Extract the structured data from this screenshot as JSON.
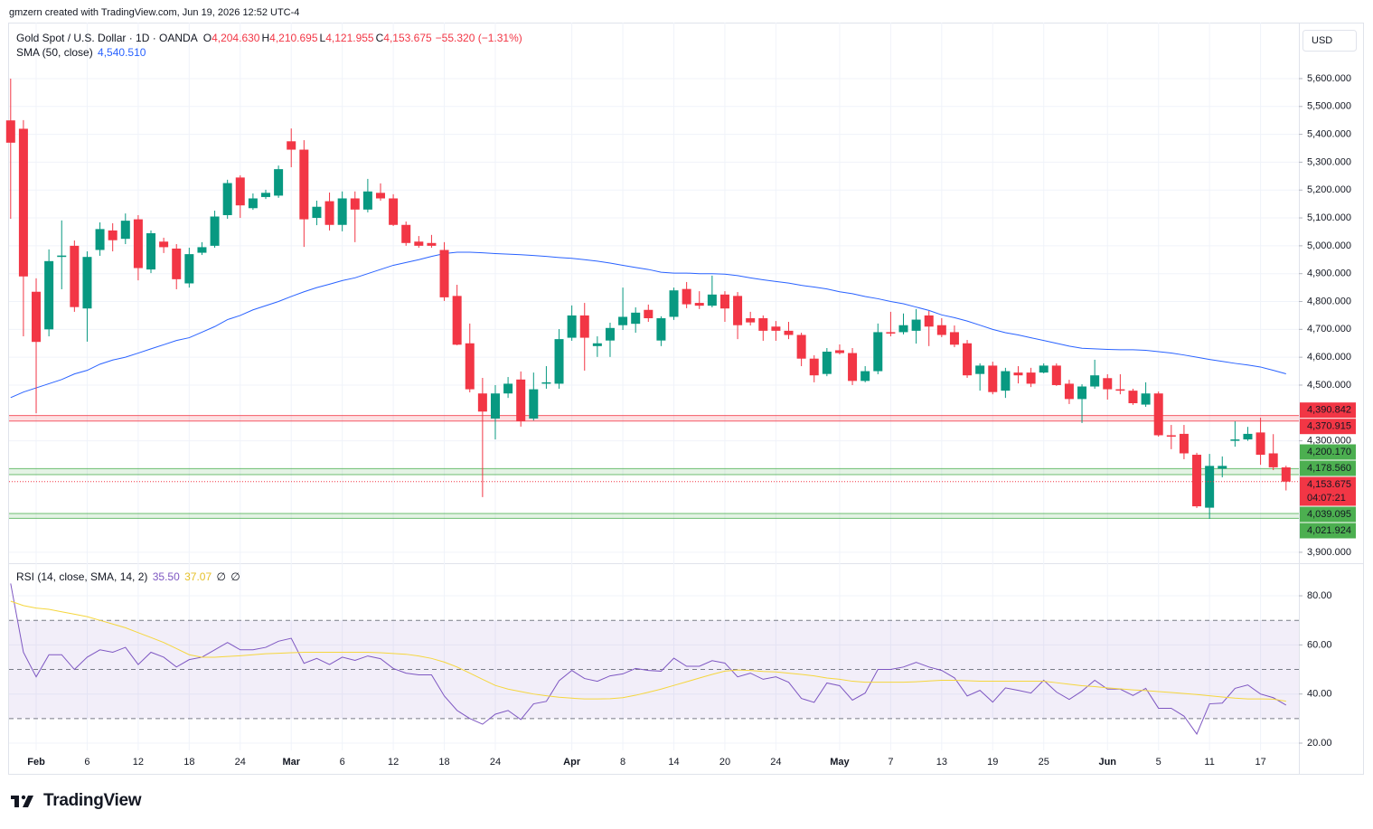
{
  "header": {
    "attribution": "gmzern created with TradingView.com, Jun 19, 2026 12:52 UTC-4",
    "brand": "TradingView"
  },
  "chart_data": [
    {
      "type": "candlestick",
      "title": "Gold Spot / U.S. Dollar · 1D · OANDA",
      "ohlc": [
        {
          "key": "O",
          "text": "4,204.630"
        },
        {
          "key": "H",
          "text": "4,210.695"
        },
        {
          "key": "L",
          "text": "4,121.955"
        },
        {
          "key": "C",
          "text": "4,153.675"
        }
      ],
      "change": "−55.320 (−1.31%)",
      "currency": "USD",
      "up_color": "#089981",
      "down_color": "#f23645",
      "categories": [
        null,
        null,
        "Feb",
        null,
        null,
        null,
        "6",
        null,
        null,
        null,
        "12",
        null,
        null,
        null,
        "18",
        null,
        null,
        null,
        "24",
        null,
        null,
        null,
        "Mar",
        null,
        null,
        null,
        "6",
        null,
        null,
        null,
        "12",
        null,
        null,
        null,
        "18",
        null,
        null,
        null,
        "24",
        null,
        null,
        null,
        null,
        null,
        "Apr",
        null,
        null,
        null,
        "8",
        null,
        null,
        null,
        "14",
        null,
        null,
        null,
        "20",
        null,
        null,
        null,
        "24",
        null,
        null,
        null,
        null,
        "May",
        null,
        null,
        null,
        "7",
        null,
        null,
        null,
        "13",
        null,
        null,
        null,
        "19",
        null,
        null,
        null,
        "25",
        null,
        null,
        null,
        null,
        "Jun",
        null,
        null,
        null,
        "5",
        null,
        null,
        null,
        "11",
        null,
        null,
        null,
        "17",
        null,
        null
      ],
      "open": [
        5450,
        5420,
        4835,
        4700,
        4960,
        5000,
        4775,
        4985,
        5055,
        5025,
        5095,
        4915,
        5015,
        4990,
        4865,
        4975,
        5000,
        5110,
        5245,
        5135,
        5175,
        5180,
        5375,
        5345,
        5100,
        5160,
        5075,
        5170,
        5130,
        5190,
        5170,
        5075,
        5015,
        5010,
        4985,
        4820,
        4650,
        4470,
        4380,
        4470,
        4520,
        4380,
        4505,
        4505,
        4670,
        4750,
        4640,
        4660,
        4715,
        4720,
        4770,
        4660,
        4745,
        4845,
        4795,
        4785,
        4825,
        4820,
        4740,
        4740,
        4710,
        4695,
        4680,
        4595,
        4540,
        4625,
        4615,
        4515,
        4550,
        4690,
        4690,
        4695,
        4750,
        4715,
        4690,
        4650,
        4540,
        4570,
        4480,
        4545,
        4545,
        4545,
        4570,
        4505,
        4450,
        4495,
        4525,
        4485,
        4480,
        4430,
        4470,
        4320,
        4325,
        4250,
        4060,
        4200,
        4300,
        4305,
        4330,
        4255,
        4204.63
      ],
      "high": [
        5600,
        5451,
        4883,
        4987,
        5091,
        5019,
        4980,
        5084,
        5081,
        5116,
        5110,
        5055,
        5029,
        5006,
        4993,
        5013,
        5126,
        5237,
        5253,
        5188,
        5201,
        5288,
        5421,
        5379,
        5162,
        5191,
        5195,
        5195,
        5240,
        5224,
        5185,
        5087,
        5035,
        5039,
        5013,
        4860,
        4721,
        4526,
        4500,
        4529,
        4549,
        4545,
        4568,
        4701,
        4786,
        4795,
        4675,
        4724,
        4850,
        4779,
        4789,
        4747,
        4850,
        4870,
        4837,
        4893,
        4837,
        4834,
        4763,
        4750,
        4730,
        4727,
        4688,
        4607,
        4633,
        4646,
        4633,
        4568,
        4721,
        4763,
        4757,
        4773,
        4766,
        4740,
        4714,
        4662,
        4578,
        4584,
        4562,
        4568,
        4562,
        4578,
        4578,
        4519,
        4503,
        4591,
        4539,
        4539,
        4487,
        4510,
        4477,
        4357,
        4357,
        4257,
        4253,
        4244,
        4370,
        4350,
        4383,
        4324,
        4210.695
      ],
      "low": [
        5097,
        4675,
        4399,
        4675,
        4844,
        4763,
        4656,
        4964,
        4980,
        5006,
        4876,
        4902,
        4974,
        4844,
        4850,
        4967,
        4993,
        5097,
        5100,
        5129,
        5168,
        5172,
        5282,
        4996,
        5074,
        5055,
        5052,
        5013,
        5120,
        5162,
        5071,
        5000,
        4993,
        4993,
        4802,
        4643,
        4474,
        4098,
        4305,
        4454,
        4351,
        4373,
        4487,
        4487,
        4659,
        4552,
        4601,
        4601,
        4698,
        4688,
        4727,
        4640,
        4734,
        4776,
        4773,
        4779,
        4727,
        4665,
        4714,
        4659,
        4659,
        4665,
        4568,
        4510,
        4532,
        4610,
        4500,
        4510,
        4539,
        4675,
        4682,
        4649,
        4640,
        4672,
        4636,
        4526,
        4480,
        4467,
        4454,
        4506,
        4493,
        4542,
        4497,
        4432,
        4364,
        4487,
        4448,
        4467,
        4429,
        4422,
        4315,
        4270,
        4234,
        4059,
        4020,
        4169,
        4279,
        4300,
        4214,
        4195,
        4121.955
      ],
      "close": [
        5370,
        4890,
        4655,
        4945,
        4965,
        4780,
        4960,
        5060,
        5020,
        5090,
        4920,
        5045,
        4995,
        4880,
        4970,
        4995,
        5105,
        5225,
        5145,
        5170,
        5190,
        5275,
        5345,
        5095,
        5140,
        5075,
        5170,
        5130,
        5195,
        5170,
        5075,
        5010,
        5000,
        5000,
        4815,
        4645,
        4485,
        4405,
        4470,
        4505,
        4370,
        4485,
        4510,
        4665,
        4750,
        4670,
        4650,
        4705,
        4745,
        4760,
        4740,
        4740,
        4840,
        4790,
        4785,
        4825,
        4775,
        4715,
        4725,
        4695,
        4695,
        4680,
        4595,
        4535,
        4620,
        4615,
        4515,
        4550,
        4690,
        4685,
        4715,
        4735,
        4710,
        4680,
        4645,
        4535,
        4570,
        4475,
        4550,
        4535,
        4505,
        4570,
        4500,
        4450,
        4495,
        4535,
        4485,
        4480,
        4435,
        4470,
        4320,
        4315,
        4255,
        4065,
        4210,
        4210,
        4305,
        4325,
        4250,
        4205,
        4153.675
      ],
      "overlays": [
        {
          "name": "SMA (50, close)",
          "color": "#2962ff",
          "value_label": "4,540.510",
          "values": [
            4455,
            4475,
            4490,
            4505,
            4520,
            4540,
            4553,
            4575,
            4590,
            4600,
            4615,
            4630,
            4645,
            4660,
            4670,
            4690,
            4710,
            4735,
            4750,
            4770,
            4785,
            4800,
            4818,
            4835,
            4850,
            4862,
            4875,
            4885,
            4900,
            4915,
            4930,
            4940,
            4950,
            4962,
            4972,
            4977,
            4977,
            4975,
            4972,
            4970,
            4968,
            4965,
            4962,
            4958,
            4955,
            4950,
            4945,
            4938,
            4930,
            4922,
            4915,
            4905,
            4902,
            4902,
            4900,
            4900,
            4898,
            4893,
            4885,
            4878,
            4872,
            4866,
            4858,
            4852,
            4845,
            4835,
            4828,
            4818,
            4810,
            4800,
            4792,
            4780,
            4768,
            4752,
            4742,
            4730,
            4715,
            4700,
            4688,
            4680,
            4670,
            4660,
            4650,
            4640,
            4632,
            4630,
            4628,
            4627,
            4627,
            4625,
            4620,
            4615,
            4608,
            4600,
            4592,
            4585,
            4578,
            4572,
            4565,
            4553,
            4540.51
          ]
        }
      ],
      "zones": [
        {
          "color": "#f23645",
          "levels": [
            {
              "value": 4390.842,
              "label": "4,390.842"
            },
            {
              "value": 4370.915,
              "label": "4,370.915"
            }
          ]
        },
        {
          "color": "#4caf50",
          "levels": [
            {
              "value": 4200.17,
              "label": "4,200.170"
            },
            {
              "value": 4178.56,
              "label": "4,178.560"
            }
          ]
        },
        {
          "color": "#4caf50",
          "levels": [
            {
              "value": 4039.095,
              "label": "4,039.095"
            },
            {
              "value": 4021.924,
              "label": "4,021.924"
            }
          ]
        }
      ],
      "last_price_label": "4,153.675",
      "countdown": "04:07:21",
      "ylim": [
        3864,
        5801
      ],
      "yticks": [
        {
          "value": 3900,
          "label": "3,900.000"
        },
        {
          "value": 4300,
          "label": "4,300.000"
        },
        {
          "value": 4500,
          "label": "4,500.000"
        },
        {
          "value": 4600,
          "label": "4,600.000"
        },
        {
          "value": 4700,
          "label": "4,700.000"
        },
        {
          "value": 4800,
          "label": "4,800.000"
        },
        {
          "value": 4900,
          "label": "4,900.000"
        },
        {
          "value": 5000,
          "label": "5,000.000"
        },
        {
          "value": 5100,
          "label": "5,100.000"
        },
        {
          "value": 5200,
          "label": "5,200.000"
        },
        {
          "value": 5300,
          "label": "5,300.000"
        },
        {
          "value": 5400,
          "label": "5,400.000"
        },
        {
          "value": 5500,
          "label": "5,500.000"
        },
        {
          "value": 5600,
          "label": "5,600.000"
        }
      ],
      "grid": true
    },
    {
      "type": "line",
      "title": "RSI (14, close, SMA, 14, 2)",
      "extras": [
        "∅",
        "∅"
      ],
      "series": [
        {
          "color": "#7e57c2",
          "value_label": "35.50",
          "values": [
            85,
            57,
            47,
            56,
            56,
            50,
            55,
            58,
            57,
            59,
            52,
            57,
            55,
            51,
            54,
            55,
            58,
            61,
            58,
            58,
            59,
            61.5,
            62.7,
            52.5,
            54.5,
            52,
            55,
            53.7,
            55.5,
            54.4,
            50.4,
            48.5,
            47.8,
            47.8,
            39.2,
            33.3,
            30,
            27.7,
            31.8,
            33.3,
            29.6,
            36,
            37,
            45.4,
            49.6,
            46.3,
            45.2,
            47.4,
            48.2,
            50.4,
            49.6,
            49.3,
            54.6,
            51.3,
            51.3,
            53.6,
            52.6,
            47,
            48.5,
            46,
            47,
            44.8,
            38.2,
            36.6,
            44.5,
            43.4,
            37.5,
            40.4,
            50,
            50,
            51,
            52.9,
            51,
            49.6,
            46.6,
            39.2,
            41.5,
            36.7,
            42.5,
            41.5,
            40.4,
            45.6,
            40.8,
            37.8,
            41.2,
            45.6,
            42,
            42,
            39.4,
            42.3,
            34.2,
            34.2,
            31,
            23.7,
            36,
            36.3,
            42.3,
            43.7,
            40,
            38.5,
            35.5
          ]
        },
        {
          "color": "#f5d63d",
          "value_label": "37.07",
          "values": [
            77.8,
            76,
            75,
            74.5,
            73.5,
            72.5,
            71.5,
            70,
            68.5,
            67,
            65,
            63,
            61,
            58.5,
            56,
            55,
            55,
            55.3,
            55.6,
            56,
            56.4,
            56.6,
            56.8,
            57,
            57,
            57,
            57,
            57,
            57,
            56.8,
            56.5,
            56.2,
            55.5,
            54.5,
            53,
            51,
            48.5,
            46,
            43.5,
            42,
            41,
            40,
            39.3,
            38.7,
            38.3,
            38,
            38,
            38.1,
            38.5,
            39.5,
            40.7,
            42,
            43.5,
            45,
            46.5,
            48,
            49.3,
            49.8,
            49.6,
            49.2,
            49,
            48.5,
            48,
            47.4,
            46.5,
            46,
            45.2,
            44.8,
            44.8,
            44.8,
            44.8,
            45,
            45.3,
            45.6,
            45.6,
            45.4,
            45.2,
            45.2,
            45.2,
            45.2,
            45.2,
            45.2,
            44.6,
            44,
            43.4,
            43,
            42.5,
            42.1,
            41.7,
            41.4,
            41,
            40.6,
            40.2,
            39.8,
            39.3,
            38.8,
            38.3,
            38,
            38,
            37.9,
            37.07
          ]
        }
      ],
      "levels": [
        70,
        50,
        30
      ],
      "band_color": "#7e57c2",
      "ylim": [
        17.06,
        92.9
      ],
      "yticks": [
        {
          "value": 20,
          "label": "20.00"
        },
        {
          "value": 40,
          "label": "40.00"
        },
        {
          "value": 60,
          "label": "60.00"
        },
        {
          "value": 80,
          "label": "80.00"
        }
      ],
      "grid": true
    }
  ]
}
